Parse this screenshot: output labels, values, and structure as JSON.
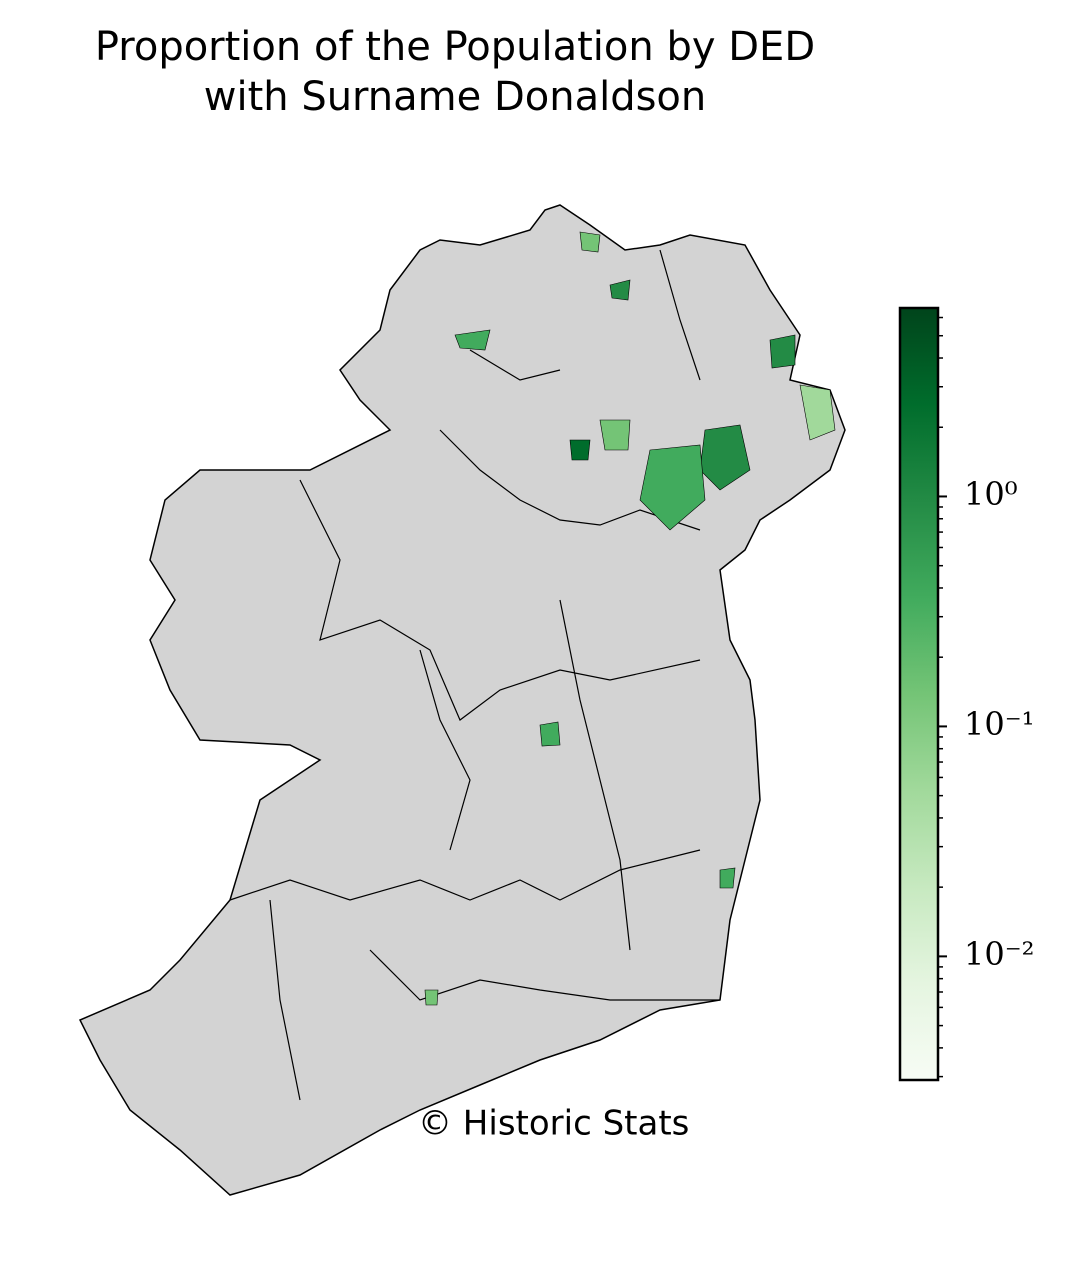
{
  "chart_data": {
    "type": "choropleth",
    "title": "Proportion of the Population by DED\nwith Surname Donaldson",
    "credit": "© Historic Stats",
    "colorbar": {
      "log_scale": true,
      "ylim": [
        0.0029,
        6.6
      ],
      "yticks": [
        {
          "value": 1,
          "label": "10⁰"
        },
        {
          "value": 0.1,
          "label": "10⁻¹"
        },
        {
          "value": 0.01,
          "label": "10⁻²"
        }
      ],
      "yminorticks": [
        0.003,
        0.004,
        0.005,
        0.006,
        0.007,
        0.008,
        0.009,
        0.02,
        0.03,
        0.04,
        0.05,
        0.06,
        0.07,
        0.08,
        0.09,
        0.2,
        0.3,
        0.4,
        0.5,
        0.6,
        0.7,
        0.8,
        0.9,
        2,
        3,
        4,
        5,
        6
      ],
      "colors": [
        "#f7fcf5",
        "#e5f5e0",
        "#c7e9c0",
        "#a1d99b",
        "#74c476",
        "#41ab5d",
        "#238b45",
        "#006d2c",
        "#00441b"
      ]
    }
  }
}
